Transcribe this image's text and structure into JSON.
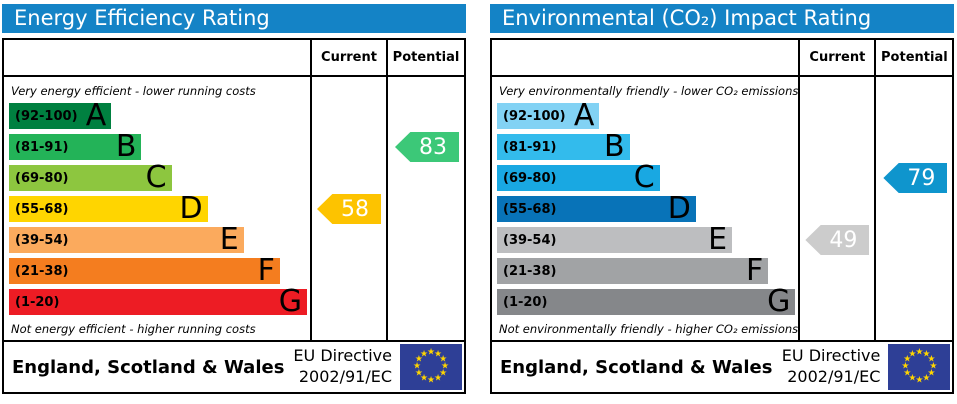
{
  "panels": [
    {
      "title": "Energy Efficiency Rating",
      "header_color": "#1483c6",
      "col_current": "Current",
      "col_potential": "Potential",
      "caption_top": "Very energy efficient - lower running costs",
      "caption_bottom": "Not energy efficient - higher running costs",
      "bands": [
        {
          "range": "(92-100)",
          "letter": "A",
          "color": "#008040",
          "width_pct": 34
        },
        {
          "range": "(81-91)",
          "letter": "B",
          "color": "#23b358",
          "width_pct": 44
        },
        {
          "range": "(69-80)",
          "letter": "C",
          "color": "#8dc63f",
          "width_pct": 54
        },
        {
          "range": "(55-68)",
          "letter": "D",
          "color": "#ffd500",
          "width_pct": 66
        },
        {
          "range": "(39-54)",
          "letter": "E",
          "color": "#fbaa5d",
          "width_pct": 78
        },
        {
          "range": "(21-38)",
          "letter": "F",
          "color": "#f47d1f",
          "width_pct": 90
        },
        {
          "range": "(1-20)",
          "letter": "G",
          "color": "#ed1c24",
          "width_pct": 99
        }
      ],
      "current": {
        "value": "58",
        "band_index": 3,
        "color": "#fdc300"
      },
      "potential": {
        "value": "83",
        "band_index": 1,
        "color": "#3cc878"
      },
      "footer": {
        "region": "England, Scotland & Wales",
        "directive_line1": "EU Directive",
        "directive_line2": "2002/91/EC",
        "flag_color": "#2e3f96",
        "star_color": "#ffd500"
      }
    },
    {
      "title": "Environmental (CO₂) Impact Rating",
      "header_color": "#1483c6",
      "col_current": "Current",
      "col_potential": "Potential",
      "caption_top": "Very environmentally friendly - lower CO₂ emissions",
      "caption_bottom": "Not environmentally friendly - higher CO₂ emissions",
      "bands": [
        {
          "range": "(92-100)",
          "letter": "A",
          "color": "#82d2f4",
          "width_pct": 34
        },
        {
          "range": "(81-91)",
          "letter": "B",
          "color": "#33bbec",
          "width_pct": 44
        },
        {
          "range": "(69-80)",
          "letter": "C",
          "color": "#19a8e2",
          "width_pct": 54
        },
        {
          "range": "(55-68)",
          "letter": "D",
          "color": "#0873b8",
          "width_pct": 66
        },
        {
          "range": "(39-54)",
          "letter": "E",
          "color": "#bdbec0",
          "width_pct": 78
        },
        {
          "range": "(21-38)",
          "letter": "F",
          "color": "#a1a3a5",
          "width_pct": 90
        },
        {
          "range": "(1-20)",
          "letter": "G",
          "color": "#85878a",
          "width_pct": 99
        }
      ],
      "current": {
        "value": "49",
        "band_index": 4,
        "color": "#cccccc"
      },
      "potential": {
        "value": "79",
        "band_index": 2,
        "color": "#0f95cd"
      },
      "footer": {
        "region": "England, Scotland & Wales",
        "directive_line1": "EU Directive",
        "directive_line2": "2002/91/EC",
        "flag_color": "#2e3f96",
        "star_color": "#ffd500"
      }
    }
  ],
  "chart_data": [
    {
      "type": "bar",
      "title": "Energy Efficiency Rating",
      "categories": [
        "A (92-100)",
        "B (81-91)",
        "C (69-80)",
        "D (55-68)",
        "E (39-54)",
        "F (21-38)",
        "G (1-20)"
      ],
      "bar_width_pct": [
        34,
        44,
        54,
        66,
        78,
        90,
        99
      ],
      "current": {
        "value": 58,
        "band": "D"
      },
      "potential": {
        "value": 83,
        "band": "B"
      },
      "top_annotation": "Very energy efficient - lower running costs",
      "bottom_annotation": "Not energy efficient - higher running costs",
      "footer": "England, Scotland & Wales — EU Directive 2002/91/EC"
    },
    {
      "type": "bar",
      "title": "Environmental (CO₂) Impact Rating",
      "categories": [
        "A (92-100)",
        "B (81-91)",
        "C (69-80)",
        "D (55-68)",
        "E (39-54)",
        "F (21-38)",
        "G (1-20)"
      ],
      "bar_width_pct": [
        34,
        44,
        54,
        66,
        78,
        90,
        99
      ],
      "current": {
        "value": 49,
        "band": "E"
      },
      "potential": {
        "value": 79,
        "band": "C"
      },
      "top_annotation": "Very environmentally friendly - lower CO₂ emissions",
      "bottom_annotation": "Not environmentally friendly - higher CO₂ emissions",
      "footer": "England, Scotland & Wales — EU Directive 2002/91/EC"
    }
  ]
}
